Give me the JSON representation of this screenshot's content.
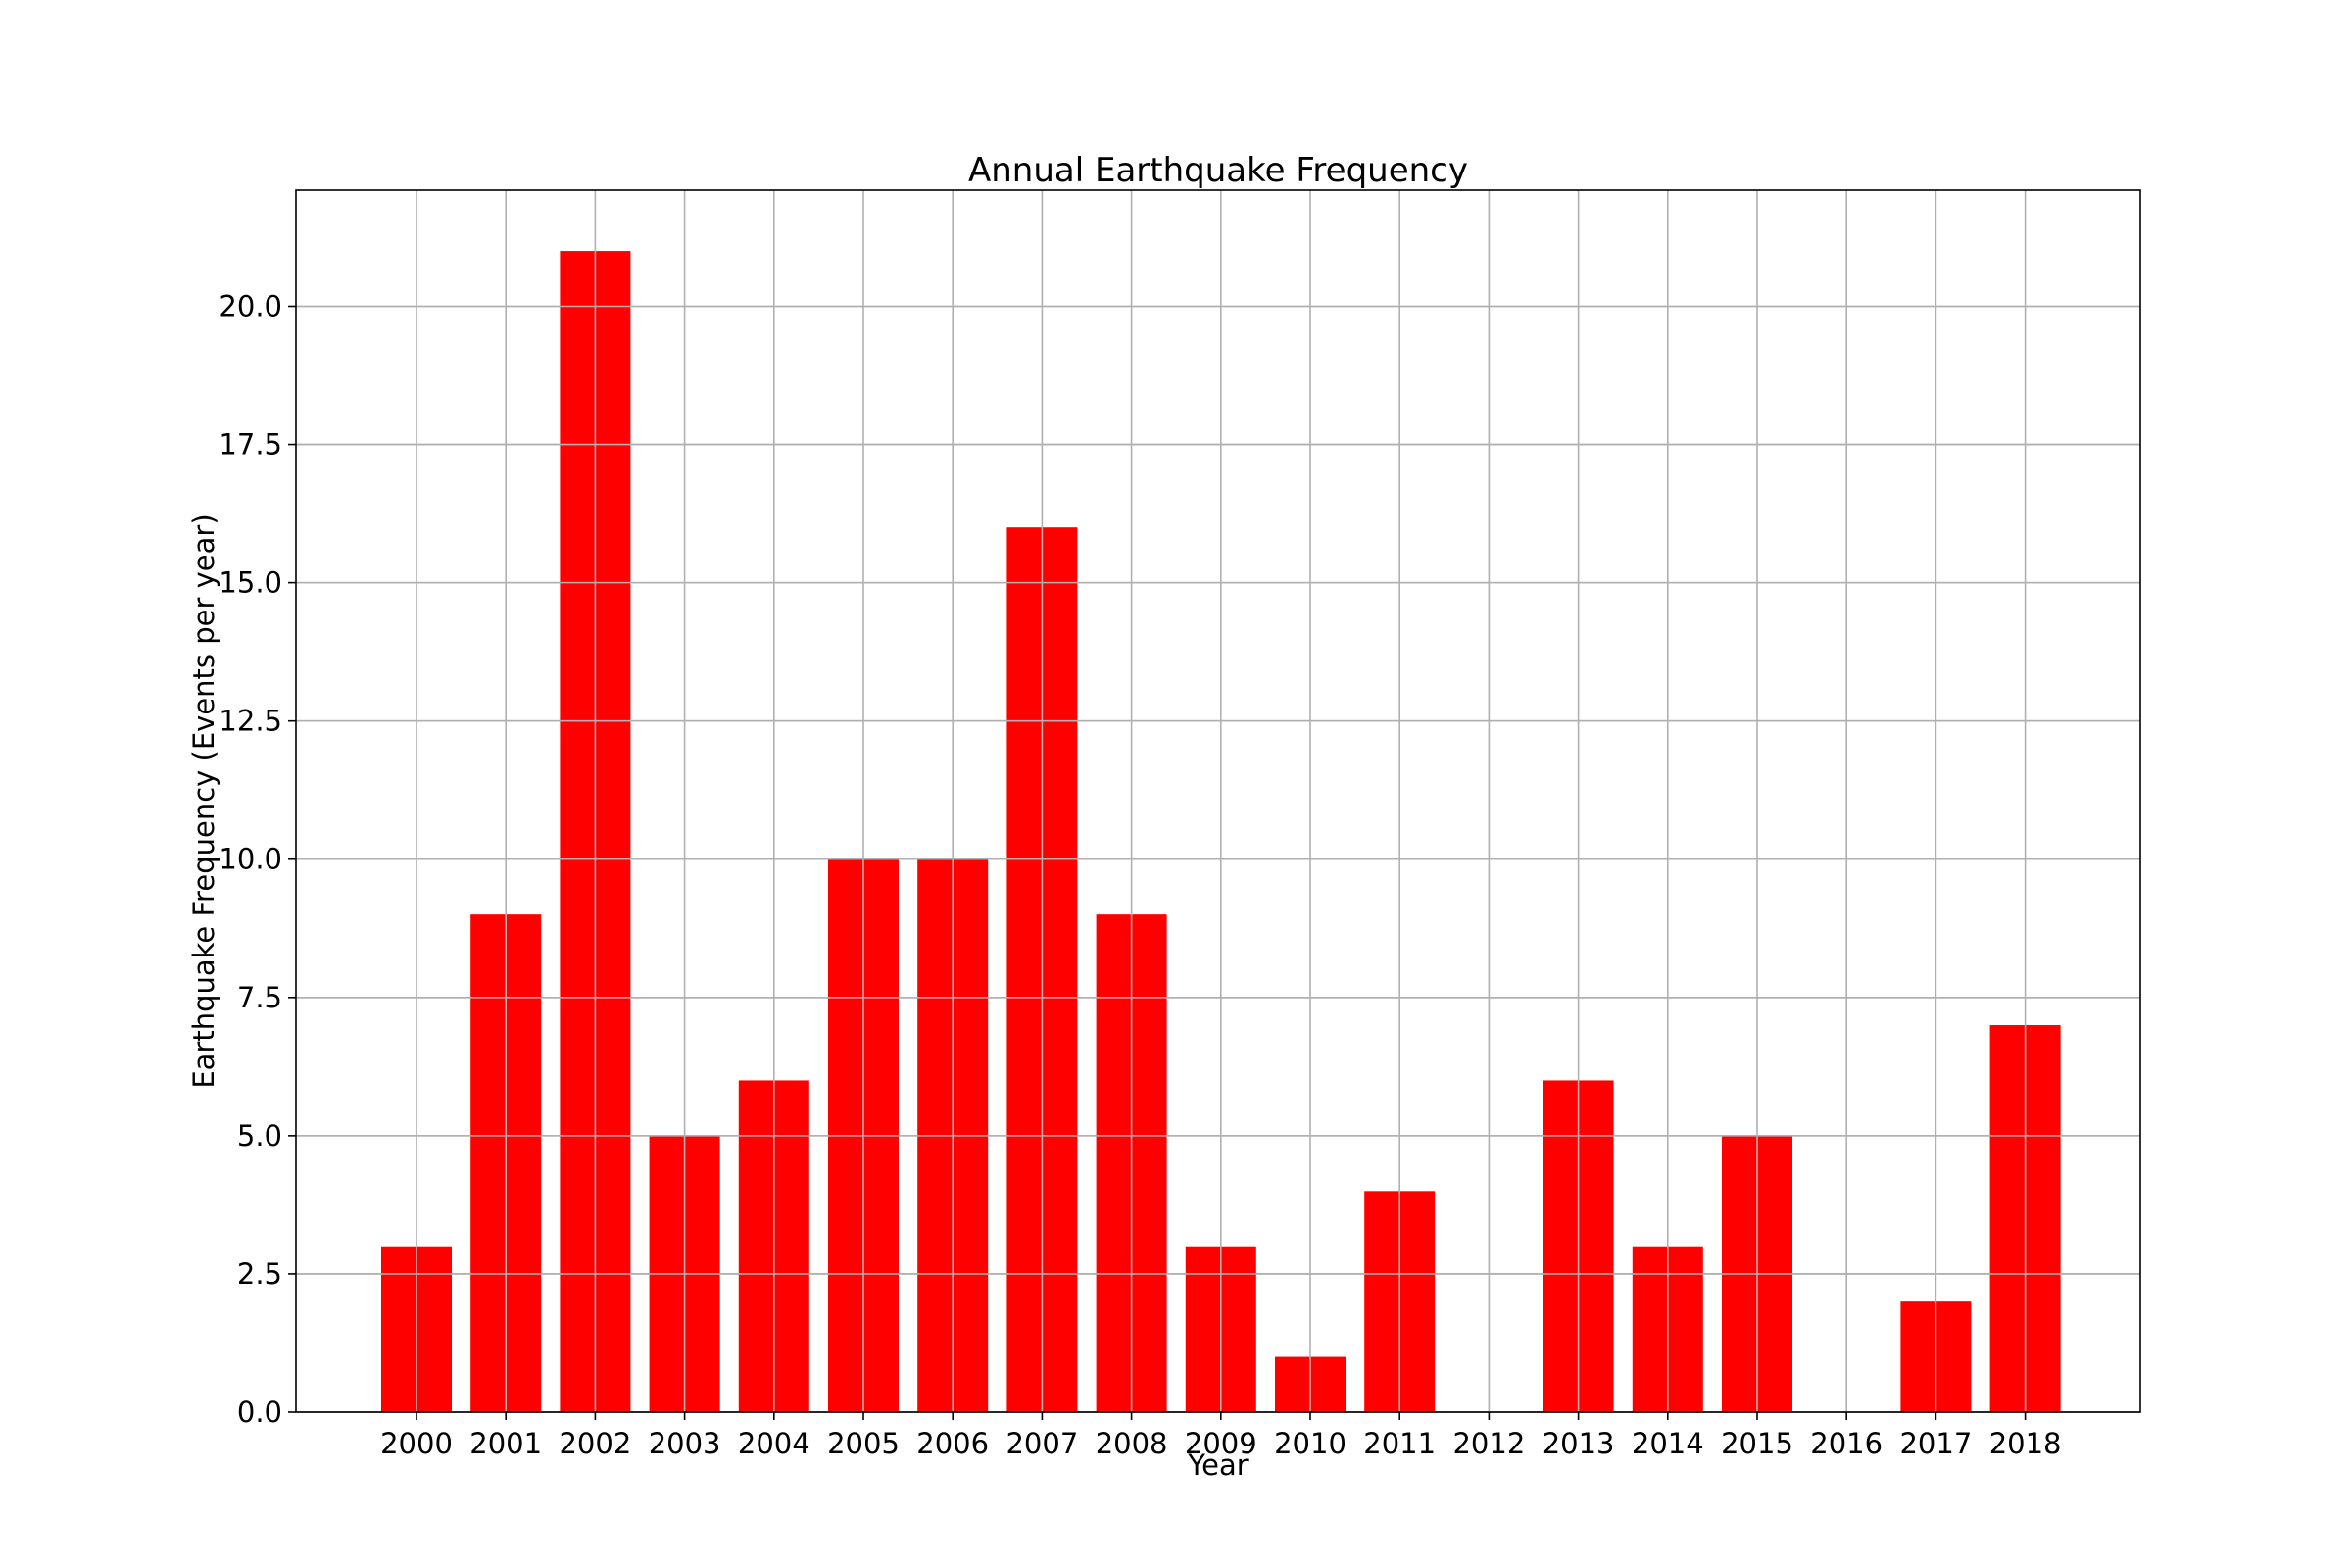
{
  "chart_data": {
    "type": "bar",
    "title": "Annual Earthquake Frequency",
    "xlabel": "Year",
    "ylabel": "Earthquake Frequency (Events per year)",
    "categories": [
      "2000",
      "2001",
      "2002",
      "2003",
      "2004",
      "2005",
      "2006",
      "2007",
      "2008",
      "2009",
      "2010",
      "2011",
      "2012",
      "2013",
      "2014",
      "2015",
      "2016",
      "2017",
      "2018"
    ],
    "values": [
      3,
      9,
      21,
      5,
      6,
      10,
      10,
      16,
      9,
      3,
      1,
      4,
      0,
      6,
      3,
      5,
      0,
      2,
      7
    ],
    "ylim": [
      0,
      22.1
    ],
    "yticks": [
      "0.0",
      "2.5",
      "5.0",
      "7.5",
      "10.0",
      "12.5",
      "15.0",
      "17.5",
      "20.0"
    ],
    "bar_color": "#ff0000",
    "grid": true,
    "legend": "none"
  }
}
